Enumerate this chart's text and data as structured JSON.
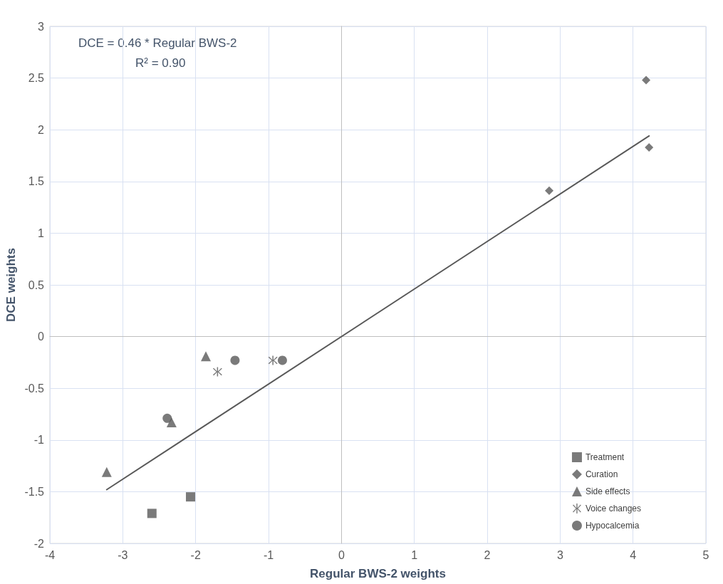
{
  "chart_data": {
    "type": "scatter",
    "xlabel": "Regular BWS-2 weights",
    "ylabel": "DCE weights",
    "annotations": [
      "DCE = 0.46 * Regular BWS-2",
      "R² = 0.90"
    ],
    "xlim": [
      -4,
      5
    ],
    "xticks": [
      -4,
      -3,
      -2,
      -1,
      0,
      1,
      2,
      3,
      4,
      5
    ],
    "ylim": [
      -2,
      3
    ],
    "yticks": [
      -2,
      -1.5,
      -1,
      -0.5,
      0,
      0.5,
      1,
      1.5,
      2,
      2.5,
      3
    ],
    "grid": true,
    "legend": "bottom right",
    "series": [
      {
        "name": "Treatment",
        "color": "#595959",
        "marker": "square",
        "x": [
          -2.6,
          -2.07
        ],
        "values": [
          -1.71,
          -1.55
        ]
      },
      {
        "name": "Curation",
        "color": "#595959",
        "marker": "diamond",
        "x": [
          2.85,
          4.18,
          4.22
        ],
        "values": [
          1.41,
          2.48,
          1.83
        ]
      },
      {
        "name": "Side effects",
        "color": "#595959",
        "marker": "triangle",
        "x": [
          -3.22,
          -1.86,
          -2.33
        ],
        "values": [
          -1.31,
          -0.19,
          -0.83
        ]
      },
      {
        "name": "Voice changes",
        "color": "#595959",
        "marker": "cross",
        "x": [
          -1.7,
          -0.94
        ],
        "values": [
          -0.34,
          -0.23
        ]
      },
      {
        "name": "Hypocalcemia",
        "color": "#595959",
        "marker": "circle",
        "x": [
          -2.39,
          -1.46,
          -0.81
        ],
        "values": [
          -0.79,
          -0.23,
          -0.23
        ]
      },
      {
        "type": "line",
        "color": "#595959",
        "marker": "none",
        "x": [
          -3.22,
          4.22
        ],
        "values": [
          -1.48,
          1.94
        ]
      }
    ]
  }
}
